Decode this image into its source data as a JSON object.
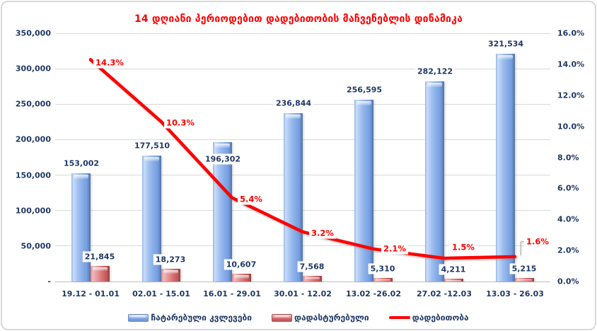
{
  "title": "14 დღიანი პერიოდებით დადებითობის მაჩვენებლის დინამიკა",
  "colors": {
    "title": "#FF0000",
    "axis_text": "#1F3864",
    "line": "#FF0000",
    "bar_blue": "#84ABE7",
    "bar_red": "#D4696B",
    "gridline": "#D9D9D9",
    "axis_line": "#BFBFBF",
    "frame_border": "#D9D9D9",
    "label_bg": "#FFFFFF"
  },
  "chart_data": {
    "type": "combo",
    "subtype": "clustered-bar-with-line",
    "title": "14 დღიანი პერიოდებით დადებითობის მაჩვენებლის დინამიკა",
    "categories": [
      "19.12 - 01.01",
      "02.01 - 15.01",
      "16.01 - 29.01",
      "30.01 - 12.02",
      "13.02 -26.02",
      "27.02 -12.03",
      "13.03 - 26.03"
    ],
    "series": [
      {
        "name": "ჩატარებული კვლევები",
        "type": "bar",
        "axis": "left",
        "color": "#84ABE7",
        "values": [
          153002,
          177510,
          196302,
          236844,
          256595,
          282122,
          321534
        ],
        "labels": [
          "153,002",
          "177,510",
          "196,302",
          "236,844",
          "256,595",
          "282,122",
          "321,534"
        ]
      },
      {
        "name": "დადასტურებული",
        "type": "bar",
        "axis": "left",
        "color": "#D4696B",
        "values": [
          21845,
          18273,
          10607,
          7568,
          5310,
          4211,
          5215
        ],
        "labels": [
          "21,845",
          "18,273",
          "10,607",
          "7,568",
          "5,310",
          "4,211",
          "5,215"
        ]
      },
      {
        "name": "დადებითობა",
        "type": "line",
        "axis": "right",
        "color": "#FF0000",
        "values": [
          14.3,
          10.3,
          5.4,
          3.2,
          2.1,
          1.5,
          1.6
        ],
        "labels": [
          "14.3%",
          "10.3%",
          "5.4%",
          "3.2%",
          "2.1%",
          "1.5%",
          "1.6%"
        ]
      }
    ],
    "left_axis": {
      "min": 0,
      "max": 350000,
      "step": 50000,
      "tick_labels_top_to_bottom": [
        "350,000",
        "300,000",
        "250,000",
        "200,000",
        "150,000",
        "100,000",
        "50,000",
        "-"
      ]
    },
    "right_axis": {
      "min": 0,
      "max": 16,
      "step": 2,
      "tick_labels_top_to_bottom": [
        "16.0%",
        "14.0%",
        "12.0%",
        "10.0%",
        "8.0%",
        "6.0%",
        "4.0%",
        "2.0%",
        "0.0%"
      ]
    },
    "grid": true,
    "legend_position": "bottom"
  }
}
